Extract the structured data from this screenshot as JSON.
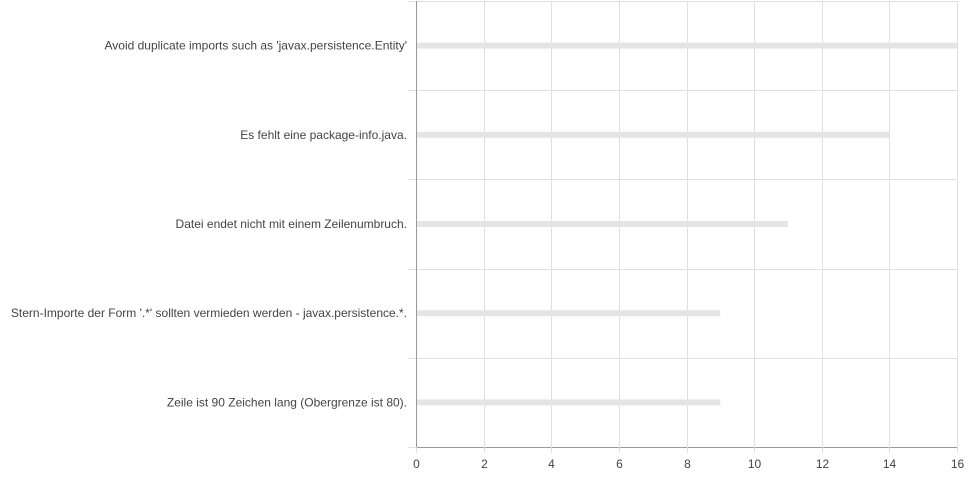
{
  "chart_data": {
    "type": "bar",
    "orientation": "horizontal",
    "categories": [
      "Avoid duplicate imports such as 'javax.persistence.Entity'",
      "Es fehlt eine package-info.java.",
      "Datei endet nicht mit einem Zeilenumbruch.",
      "Stern-Importe der Form '.*' sollten vermieden werden - javax.persistence.*.",
      "Zeile ist 90 Zeichen lang (Obergrenze ist 80)."
    ],
    "values": [
      16,
      14,
      11,
      9,
      9
    ],
    "xlim": [
      0,
      16
    ],
    "xticks": [
      0,
      2,
      4,
      6,
      8,
      10,
      12,
      14,
      16
    ],
    "grid": true,
    "legend": "none",
    "colors": {
      "bar": "#e5e5e5",
      "grid": "#e0e0e0",
      "axis": "#999999",
      "text": "#444444"
    }
  }
}
